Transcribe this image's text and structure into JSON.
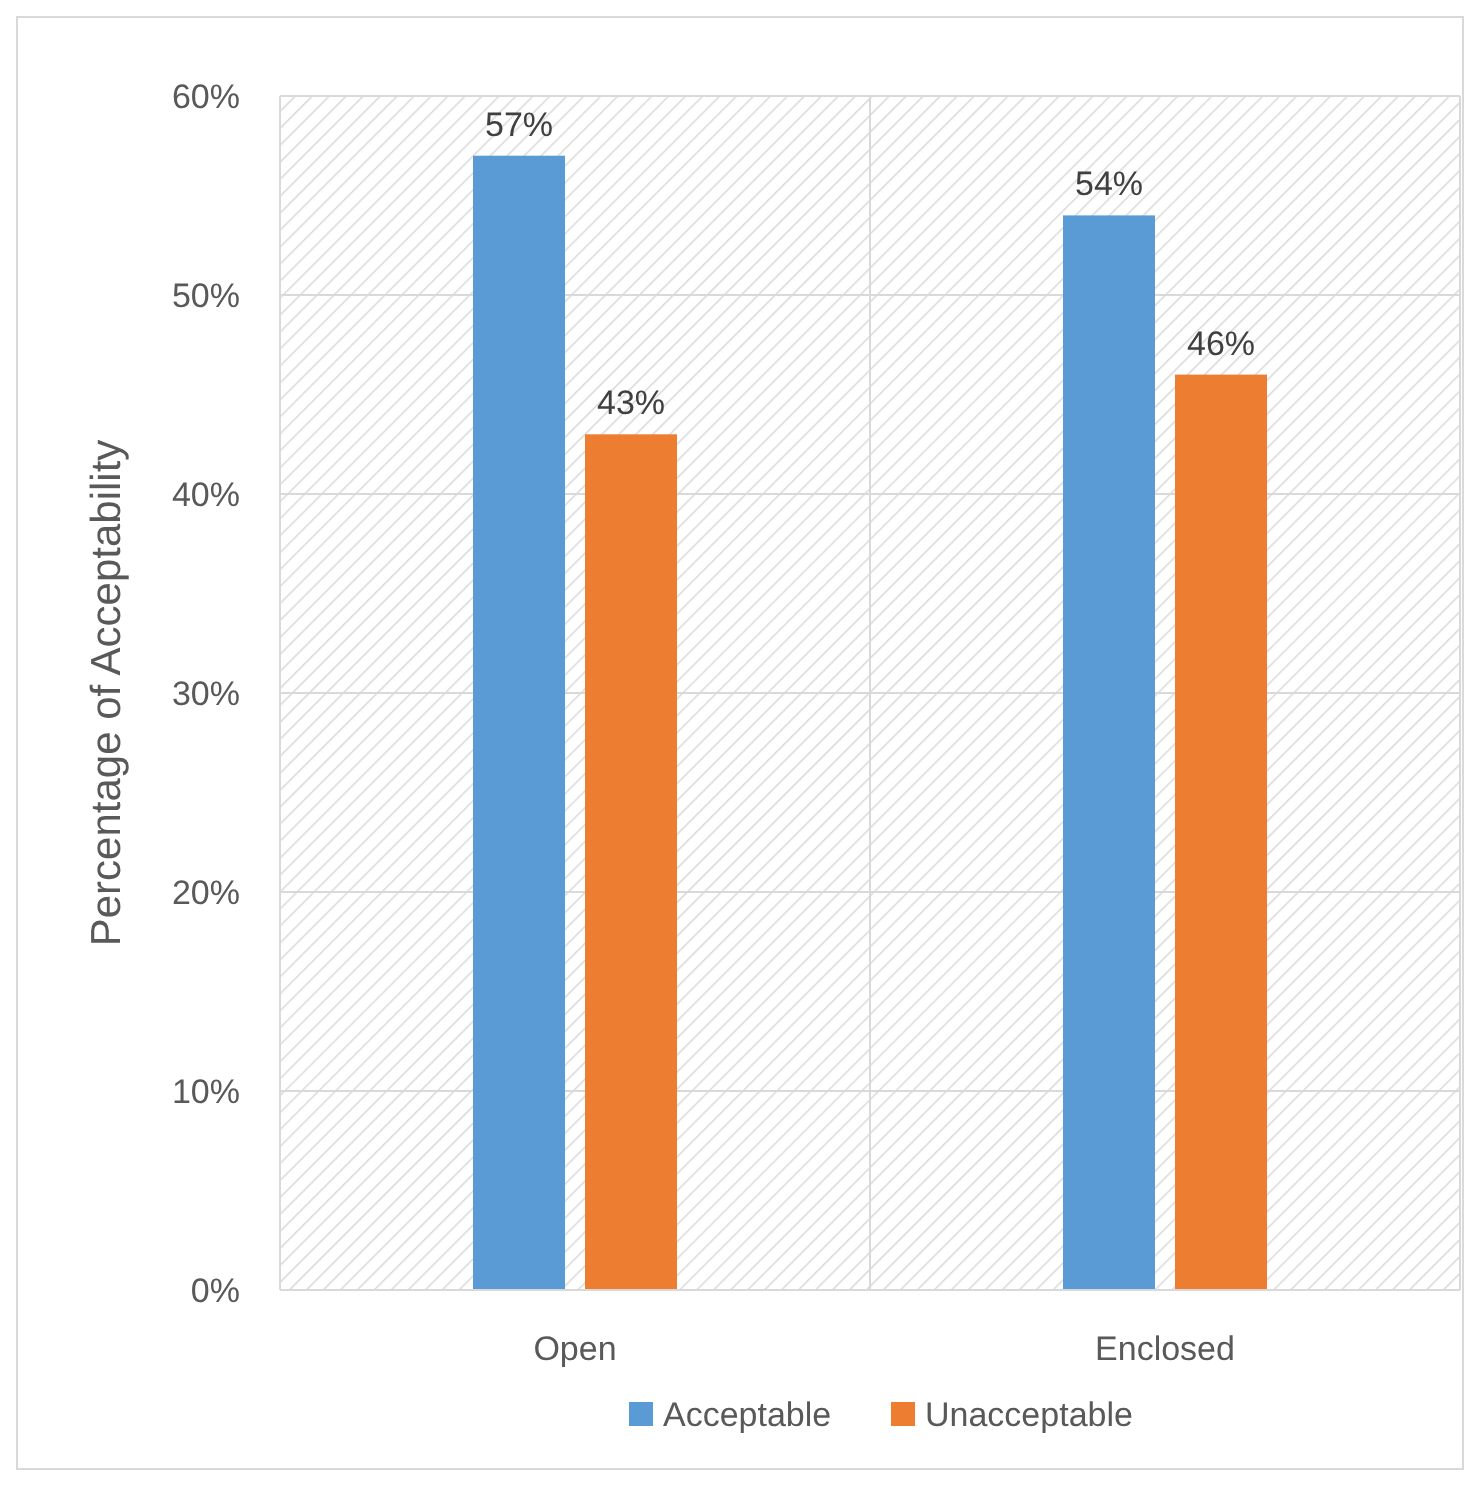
{
  "chart_data": {
    "type": "bar",
    "ylabel": "Percentage of Acceptability",
    "categories": [
      "Open",
      "Enclosed"
    ],
    "series": [
      {
        "name": "Acceptable",
        "color": "#5b9bd5",
        "values": [
          57,
          54
        ],
        "value_labels": [
          "57%",
          "54%"
        ]
      },
      {
        "name": "Unacceptable",
        "color": "#ed7d31",
        "values": [
          43,
          46
        ],
        "value_labels": [
          "43%",
          "46%"
        ]
      }
    ],
    "ylim": [
      0,
      60
    ],
    "yticks": [
      {
        "value": 0,
        "label": "0%"
      },
      {
        "value": 10,
        "label": "10%"
      },
      {
        "value": 20,
        "label": "20%"
      },
      {
        "value": 30,
        "label": "30%"
      },
      {
        "value": 40,
        "label": "40%"
      },
      {
        "value": 50,
        "label": "50%"
      },
      {
        "value": 60,
        "label": "60%"
      }
    ],
    "grid": true,
    "legend": "bottom"
  }
}
